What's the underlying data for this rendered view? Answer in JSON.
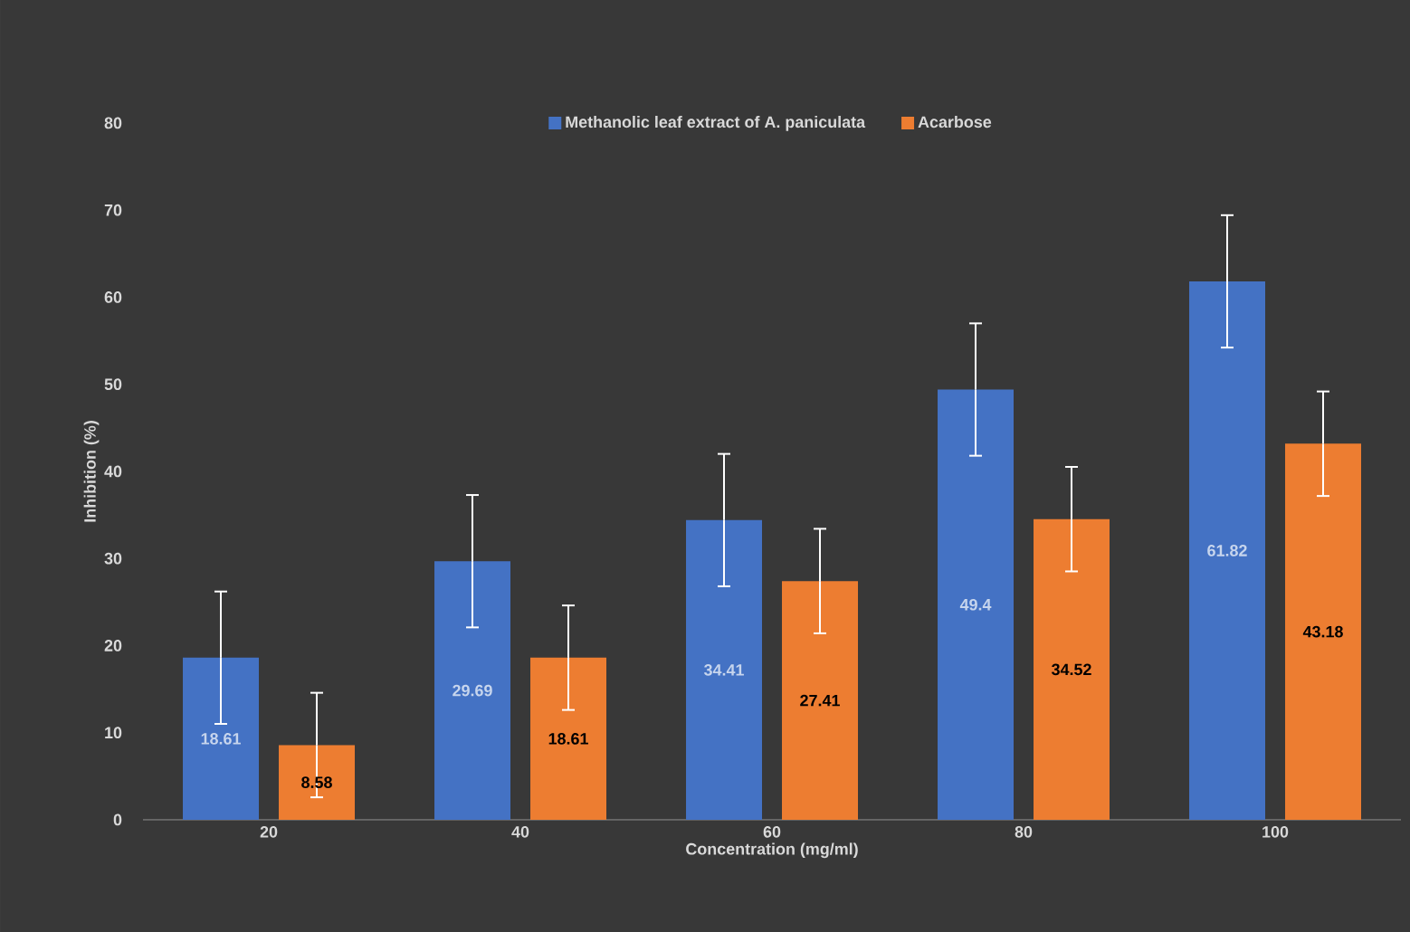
{
  "chart_data": {
    "type": "bar",
    "xlabel": "Concentration (mg/ml)",
    "ylabel": "Inhibition (%)",
    "categories": [
      "20",
      "40",
      "60",
      "80",
      "100"
    ],
    "series": [
      {
        "name": "Methanolic leaf extract of A. paniculata",
        "color": "#4472c4",
        "values": [
          18.61,
          29.69,
          34.41,
          49.4,
          61.82
        ],
        "errors": [
          7.6,
          7.6,
          7.6,
          7.6,
          7.6
        ]
      },
      {
        "name": "Acarbose",
        "color": "#ed7d31",
        "values": [
          8.58,
          18.61,
          27.41,
          34.52,
          43.18
        ],
        "errors": [
          6,
          6,
          6,
          6,
          6
        ]
      }
    ],
    "ylim": [
      0,
      80
    ],
    "yticks": [
      0,
      10,
      20,
      30,
      40,
      50,
      60,
      70,
      80
    ],
    "data_labels": true,
    "legend": "top"
  }
}
